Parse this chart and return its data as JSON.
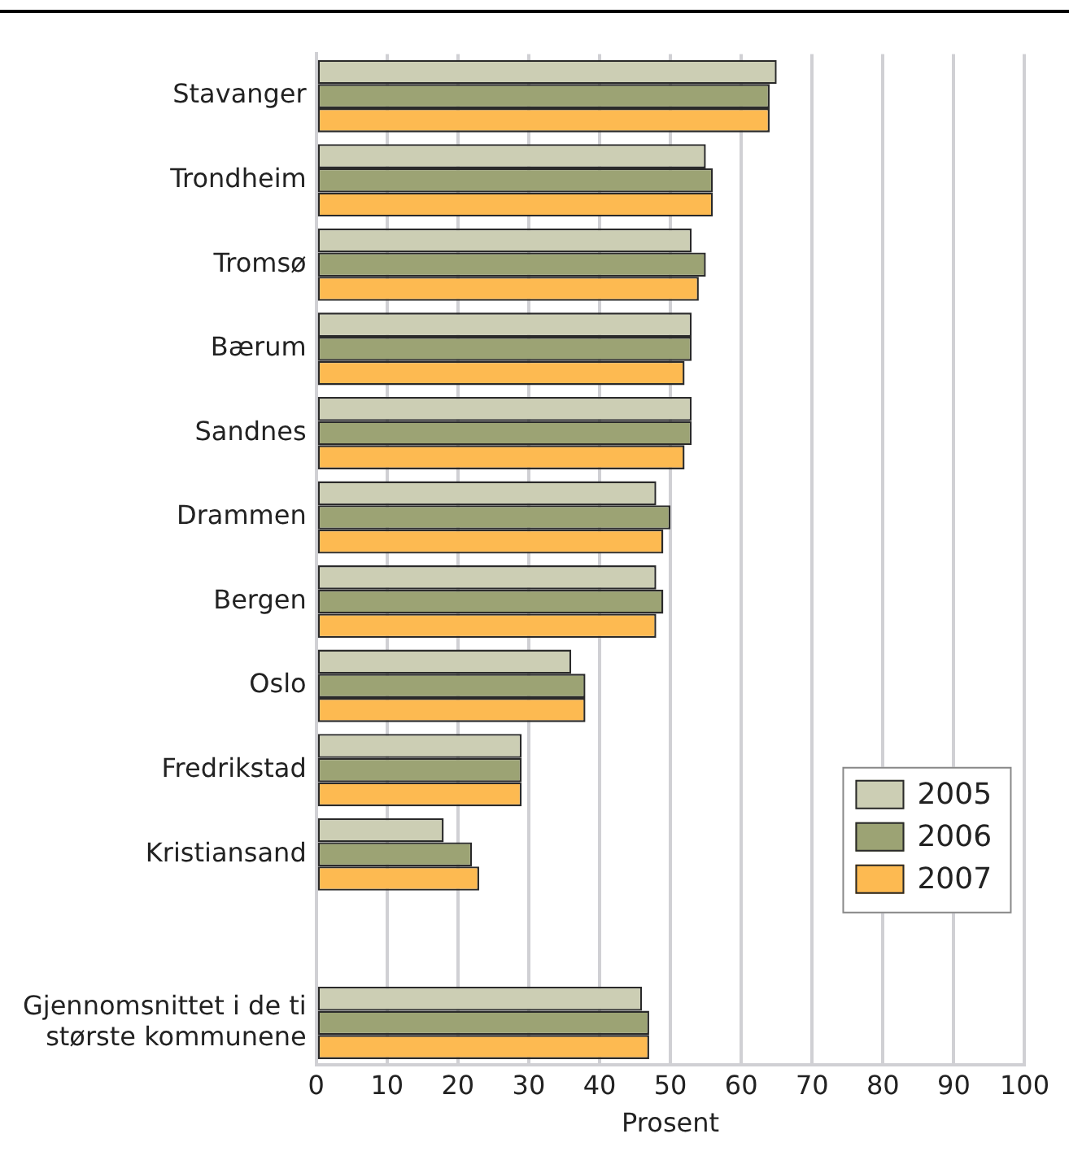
{
  "chart_data": {
    "type": "bar",
    "orientation": "horizontal",
    "xlabel": "Prosent",
    "categories": [
      "Stavanger",
      "Trondheim",
      "Tromsø",
      "Bærum",
      "Sandnes",
      "Drammen",
      "Bergen",
      "Oslo",
      "Fredrikstad",
      "Kristiansand",
      null,
      "Gjennomsnittet i de ti største kommunene"
    ],
    "series": [
      {
        "name": "2005",
        "color": "#ccceb4",
        "values": [
          65,
          55,
          53,
          53,
          53,
          48,
          48,
          36,
          29,
          18,
          null,
          46
        ]
      },
      {
        "name": "2006",
        "color": "#9ca374",
        "values": [
          64,
          56,
          55,
          53,
          53,
          50,
          49,
          38,
          29,
          22,
          null,
          47
        ]
      },
      {
        "name": "2007",
        "color": "#fdba51",
        "values": [
          64,
          56,
          54,
          52,
          52,
          49,
          48,
          38,
          29,
          23,
          null,
          47
        ]
      }
    ],
    "xlim": [
      0,
      100
    ],
    "xticks": [
      0,
      10,
      20,
      30,
      40,
      50,
      60,
      70,
      80,
      90,
      100
    ],
    "grid": "x",
    "legend": "bottom right"
  }
}
